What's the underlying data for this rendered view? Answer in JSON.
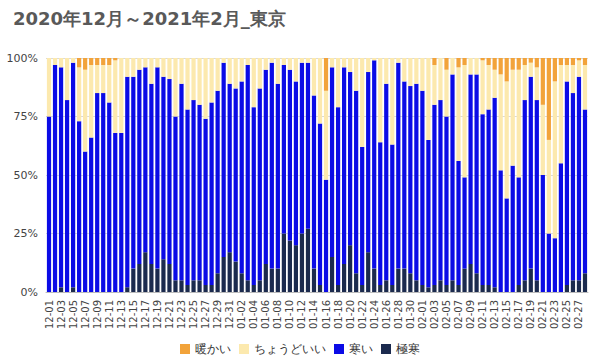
{
  "chart_data": {
    "type": "bar",
    "title": "2020年12月～2021年2月_東京",
    "stacked": true,
    "grid": true,
    "legend": "bottom",
    "categories": [
      "12-01",
      null,
      "12-03",
      null,
      "12-05",
      null,
      "12-07",
      null,
      "12-09",
      null,
      "12-11",
      null,
      "12-13",
      null,
      "12-15",
      null,
      "12-17",
      null,
      "12-19",
      null,
      "12-21",
      null,
      "12-23",
      null,
      "12-25",
      null,
      "12-27",
      null,
      "12-29",
      null,
      "12-31",
      null,
      "01-02",
      null,
      "01-04",
      null,
      "01-06",
      null,
      "01-08",
      null,
      "01-10",
      null,
      "01-12",
      null,
      "01-14",
      null,
      "01-16",
      null,
      "01-18",
      null,
      "01-20",
      null,
      "01-22",
      null,
      "01-24",
      null,
      "01-26",
      null,
      "01-28",
      null,
      "01-30",
      null,
      "02-01",
      null,
      "02-03",
      null,
      "02-05",
      null,
      "02-07",
      null,
      "02-09",
      null,
      "02-11",
      null,
      "02-13",
      null,
      "02-15",
      null,
      "02-17",
      null,
      "02-19",
      null,
      "02-21",
      null,
      "02-23",
      null,
      "02-25",
      null,
      "02-27",
      null
    ],
    "ylim": [
      0,
      100
    ],
    "yticks": [
      {
        "value": 0,
        "label": "0%"
      },
      {
        "value": 25,
        "label": "25%"
      },
      {
        "value": 50,
        "label": "50%"
      },
      {
        "value": 75,
        "label": "75%"
      },
      {
        "value": 100,
        "label": "100%"
      }
    ],
    "series": [
      {
        "name": "暖かい",
        "color": "#f2a33a",
        "values": [
          0,
          0,
          0,
          0,
          0,
          4,
          5,
          3,
          3,
          3,
          3,
          1,
          0,
          0,
          0,
          0,
          0,
          0,
          0,
          0,
          0,
          0,
          0,
          0,
          0,
          0,
          0,
          0,
          0,
          0,
          0,
          0,
          0,
          0,
          0,
          0,
          0,
          0,
          0,
          0,
          0,
          0,
          0,
          0,
          0,
          0,
          14,
          0,
          0,
          0,
          0,
          0,
          0,
          0,
          0,
          0,
          0,
          0,
          0,
          0,
          0,
          0,
          0,
          0,
          3,
          0,
          5,
          0,
          4,
          3,
          0,
          0,
          1,
          3,
          5,
          7,
          10,
          5,
          5,
          3,
          2,
          4,
          20,
          35,
          10,
          3,
          3,
          3,
          1,
          3
        ]
      },
      {
        "name": "ちょうどいい",
        "color": "#fce9ae",
        "values": [
          25,
          3,
          4,
          18,
          2,
          23,
          35,
          31,
          12,
          12,
          16,
          31,
          32,
          8,
          8,
          5,
          4,
          11,
          4,
          8,
          9,
          25,
          11,
          22,
          18,
          20,
          26,
          19,
          14,
          2,
          11,
          13,
          10,
          3,
          21,
          13,
          5,
          2,
          11,
          3,
          5,
          10,
          2,
          2,
          16,
          28,
          38,
          4,
          21,
          4,
          6,
          14,
          38,
          6,
          1,
          36,
          11,
          37,
          2,
          10,
          12,
          11,
          14,
          35,
          17,
          18,
          20,
          7,
          40,
          48,
          7,
          7,
          23,
          19,
          12,
          41,
          50,
          41,
          46,
          15,
          6,
          14,
          30,
          40,
          67,
          42,
          7,
          12,
          7,
          19
        ]
      },
      {
        "name": "寒い",
        "color": "#0b0be6",
        "values": [
          75,
          97,
          94,
          82,
          96,
          73,
          60,
          66,
          85,
          85,
          81,
          68,
          68,
          90,
          82,
          83,
          79,
          77,
          86,
          78,
          79,
          70,
          84,
          75,
          77,
          75,
          71,
          78,
          78,
          83,
          72,
          74,
          82,
          92,
          76,
          82,
          83,
          88,
          79,
          72,
          73,
          70,
          73,
          71,
          74,
          69,
          48,
          81,
          76,
          84,
          74,
          78,
          59,
          77,
          89,
          61,
          84,
          60,
          88,
          80,
          80,
          84,
          83,
          63,
          77,
          77,
          72,
          88,
          53,
          39,
          81,
          85,
          73,
          75,
          81,
          52,
          40,
          54,
          46,
          77,
          82,
          77,
          50,
          25,
          23,
          55,
          87,
          80,
          87,
          70
        ]
      },
      {
        "name": "極寒",
        "color": "#1b2a4e",
        "values": [
          0,
          0,
          2,
          0,
          2,
          0,
          0,
          0,
          0,
          0,
          0,
          0,
          0,
          2,
          10,
          12,
          17,
          12,
          10,
          14,
          12,
          5,
          5,
          3,
          5,
          5,
          3,
          3,
          8,
          15,
          17,
          13,
          8,
          5,
          3,
          5,
          12,
          10,
          10,
          25,
          22,
          20,
          25,
          27,
          10,
          3,
          0,
          15,
          3,
          12,
          20,
          8,
          3,
          17,
          10,
          3,
          5,
          3,
          10,
          10,
          8,
          5,
          3,
          2,
          3,
          5,
          3,
          5,
          3,
          10,
          12,
          8,
          3,
          3,
          2,
          0,
          0,
          0,
          3,
          5,
          10,
          5,
          0,
          0,
          0,
          0,
          3,
          5,
          5,
          8
        ]
      }
    ]
  }
}
